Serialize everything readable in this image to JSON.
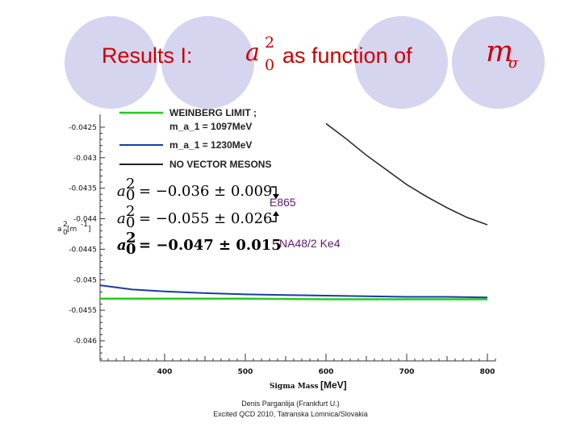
{
  "slide": {
    "title_prefix": "Results I:",
    "title_middle": "as function of",
    "title_symbol": "a",
    "title_symbol_sup": "2",
    "title_symbol_sub": "0",
    "title_m": "m",
    "title_sigma": "σ",
    "colors": {
      "title": "#cc0000",
      "circles": "#d5d5ef"
    }
  },
  "chart_data": {
    "type": "line",
    "xlabel": "Sigma Mass",
    "xlabel_unit": "[MeV]",
    "ylabel": "a",
    "ylabel_sup": "2",
    "ylabel_sub": "0",
    "ylabel_unit": "[m",
    "ylabel_unit_sup": "-1",
    "ylabel_unit_end": "]",
    "xlim": [
      320,
      810
    ],
    "ylim": [
      -0.04633,
      -0.04229
    ],
    "xticks": [
      400,
      500,
      600,
      700,
      800
    ],
    "xtick_labels": [
      "400",
      "500",
      "600",
      "700",
      "800"
    ],
    "yticks": [
      -0.0425,
      -0.043,
      -0.0435,
      -0.044,
      -0.0445,
      -0.045,
      -0.0455,
      -0.046
    ],
    "ytick_labels": [
      "-0.0425",
      "-0.043",
      "-0.0435",
      "-0.044",
      "-0.0445",
      "-0.045",
      "-0.0455",
      "-0.046"
    ],
    "series": [
      {
        "name": "WEINBERG LIMIT ;",
        "color": "#22cc22",
        "x": [
          320,
          400,
          500,
          600,
          700,
          800
        ],
        "y": [
          -0.04531,
          -0.04531,
          -0.04531,
          -0.04532,
          -0.04532,
          -0.04532
        ]
      },
      {
        "name": "m_a_1 = 1230MeV",
        "color": "#1a3aa8",
        "x": [
          320,
          360,
          400,
          450,
          500,
          550,
          600,
          650,
          700,
          750,
          800
        ],
        "y": [
          -0.04509,
          -0.04516,
          -0.04519,
          -0.04522,
          -0.04524,
          -0.04525,
          -0.04526,
          -0.04527,
          -0.04528,
          -0.04528,
          -0.04529
        ]
      },
      {
        "name": "NO VECTOR MESONS",
        "color": "#222222",
        "x": [
          600,
          625,
          650,
          675,
          700,
          725,
          750,
          775,
          800
        ],
        "y": [
          -0.04244,
          -0.04269,
          -0.04296,
          -0.0432,
          -0.04344,
          -0.04364,
          -0.04382,
          -0.04398,
          -0.0441
        ]
      }
    ],
    "legend_extra_line": "m_a_1 = 1097MeV",
    "legend_colors": [
      "#22cc22",
      "#1a3aa8",
      "#222222"
    ],
    "measurements": [
      {
        "lhs": "a",
        "sup": "2",
        "sub": "0",
        "eq": "= −0.036 ± 0.009",
        "label": "E865"
      },
      {
        "lhs": "a",
        "sup": "2",
        "sub": "0",
        "eq": "= −0.055 ± 0.026",
        "label": ""
      },
      {
        "lhs": "a",
        "sup": "2",
        "sub": "0",
        "eq": "= −0.047 ± 0.015",
        "label": "NA48/2 Ke4"
      }
    ]
  },
  "footer": {
    "line1": "Denis Parganlija (Frankfurt U.)",
    "line2": "Excited QCD 2010, Tatranska Lomnica/Slovakia"
  }
}
